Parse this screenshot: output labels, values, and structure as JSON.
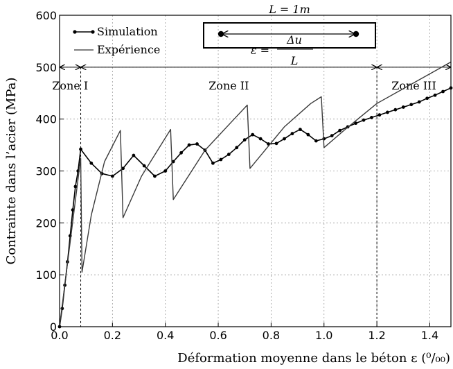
{
  "chart_data": {
    "type": "line",
    "title": "",
    "xlabel": "Déformation moyenne dans le béton ε (⁰/₀₀)",
    "ylabel": "Contrainte dans l’acier (MPa)",
    "xlim": [
      0,
      1.48
    ],
    "ylim": [
      0,
      600
    ],
    "xticks": [
      "0.0",
      "0.2",
      "0.4",
      "0.6",
      "0.8",
      "1.0",
      "1.2",
      "1.4"
    ],
    "yticks": [
      "0",
      "100",
      "200",
      "300",
      "400",
      "500",
      "600"
    ],
    "grid": true,
    "legend_position": "top-left",
    "series": [
      {
        "name": "Simulation",
        "style": "line-with-dots",
        "color": "#000000",
        "x": [
          0,
          0.01,
          0.02,
          0.03,
          0.04,
          0.05,
          0.06,
          0.07,
          0.08,
          0.12,
          0.16,
          0.2,
          0.24,
          0.28,
          0.32,
          0.36,
          0.4,
          0.43,
          0.46,
          0.49,
          0.52,
          0.55,
          0.58,
          0.61,
          0.64,
          0.67,
          0.7,
          0.73,
          0.76,
          0.79,
          0.82,
          0.85,
          0.88,
          0.91,
          0.94,
          0.97,
          1.0,
          1.03,
          1.06,
          1.09,
          1.12,
          1.15,
          1.18,
          1.21,
          1.24,
          1.27,
          1.3,
          1.33,
          1.36,
          1.39,
          1.42,
          1.45,
          1.48
        ],
        "y": [
          0,
          35,
          80,
          125,
          175,
          225,
          270,
          300,
          342,
          315,
          295,
          290,
          305,
          330,
          310,
          290,
          300,
          318,
          335,
          350,
          352,
          340,
          315,
          322,
          332,
          345,
          360,
          370,
          362,
          352,
          353,
          362,
          372,
          380,
          370,
          358,
          362,
          368,
          378,
          385,
          392,
          398,
          403,
          408,
          413,
          418,
          423,
          428,
          433,
          440,
          446,
          453,
          460
        ]
      },
      {
        "name": "Expérience",
        "style": "line",
        "color": "#000000",
        "x": [
          0,
          0.08,
          0.085,
          0.12,
          0.17,
          0.23,
          0.24,
          0.31,
          0.42,
          0.43,
          0.55,
          0.66,
          0.71,
          0.72,
          0.85,
          0.95,
          0.99,
          1.0,
          1.08,
          1.2,
          1.48
        ],
        "y": [
          0,
          325,
          105,
          215,
          318,
          378,
          210,
          290,
          380,
          245,
          340,
          400,
          427,
          305,
          385,
          430,
          443,
          345,
          380,
          430,
          510
        ]
      }
    ],
    "zones": [
      {
        "label": "Zone I",
        "x_start": 0,
        "x_end": 0.08
      },
      {
        "label": "Zone II",
        "x_start": 0.08,
        "x_end": 1.2
      },
      {
        "label": "Zone III",
        "x_start": 1.2,
        "x_end": 1.48
      }
    ],
    "zone_arrow_y": 500,
    "inset": {
      "length_label": "L = 1m",
      "formula_lhs": "ε =",
      "formula_numerator": "Δu",
      "formula_denominator": "L"
    }
  }
}
